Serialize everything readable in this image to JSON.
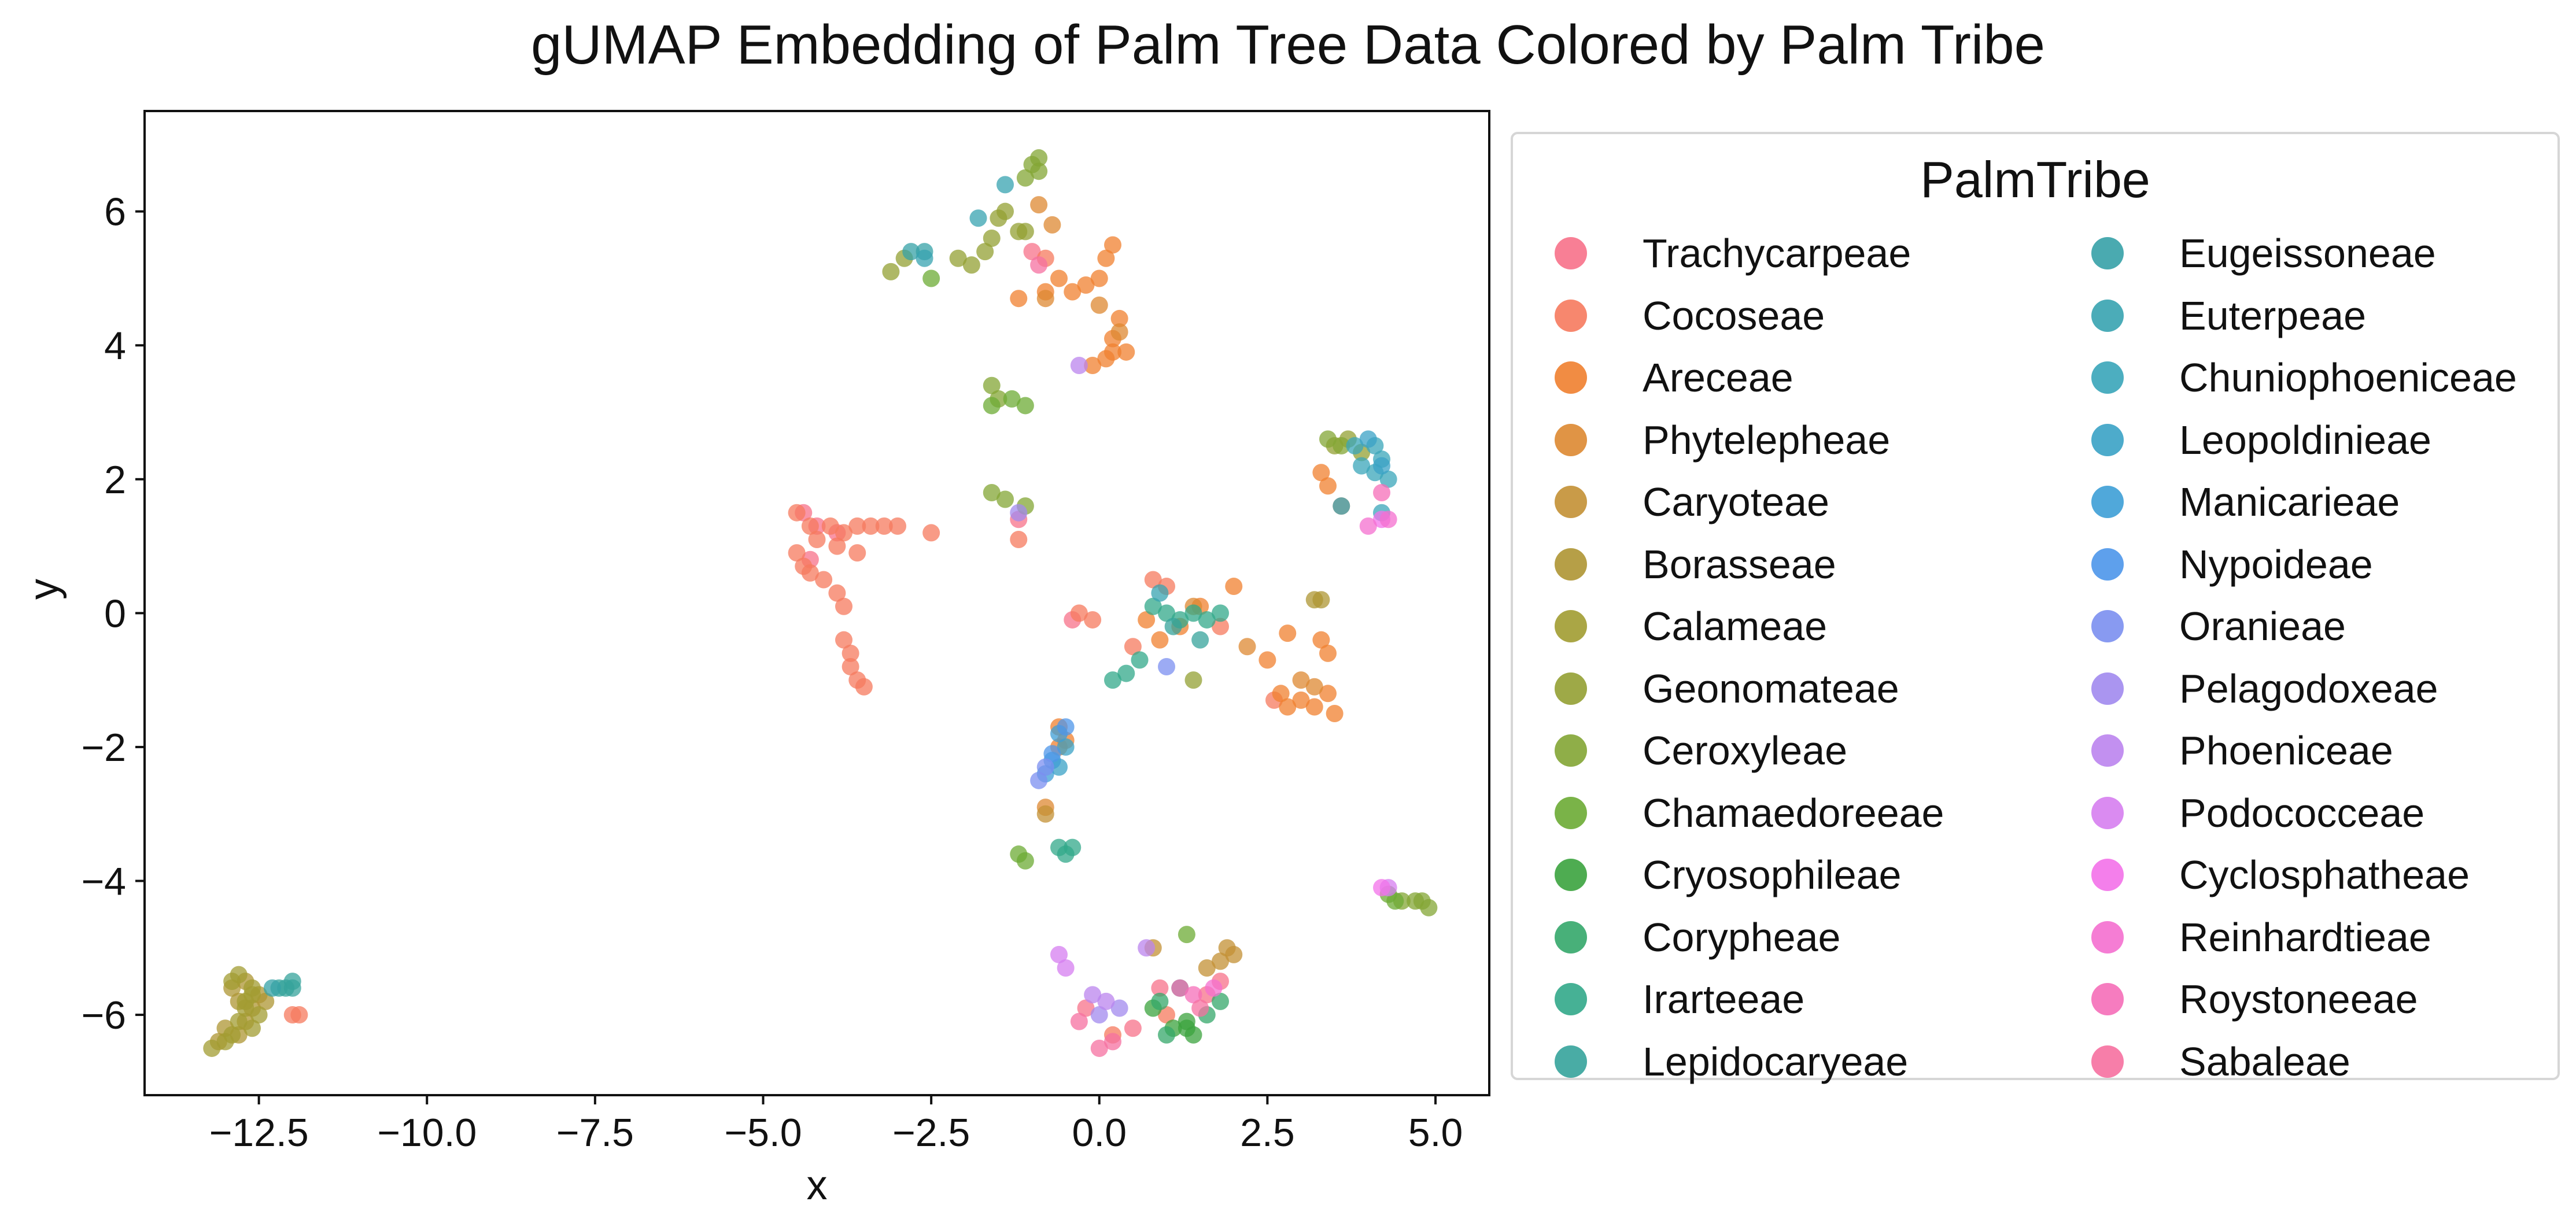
{
  "chart_data": {
    "type": "scatter",
    "title": "gUMAP Embedding of Palm Tree Data Colored by Palm Tribe",
    "xlabel": "x",
    "ylabel": "y",
    "xlim": [
      -14.2,
      5.8
    ],
    "ylim": [
      -7.2,
      7.5
    ],
    "xticks": [
      -12.5,
      -10.0,
      -7.5,
      -5.0,
      -2.5,
      0.0,
      2.5,
      5.0
    ],
    "xtick_labels": [
      "−12.5",
      "−10.0",
      "−7.5",
      "−5.0",
      "−2.5",
      "0.0",
      "2.5",
      "5.0"
    ],
    "yticks": [
      -6,
      -4,
      -2,
      0,
      2,
      4,
      6
    ],
    "ytick_labels": [
      "−6",
      "−4",
      "−2",
      "0",
      "2",
      "4",
      "6"
    ],
    "grid": false,
    "legend": {
      "title": "PalmTribe",
      "placement": "outside-right",
      "columns": 2
    },
    "series": [
      {
        "name": "Trachycarpeae",
        "color": "#f77189",
        "points": [
          [
            -4.4,
            1.5
          ],
          [
            -4.2,
            1.3
          ],
          [
            -3.9,
            1.2
          ],
          [
            -1.2,
            1.4
          ],
          [
            -0.4,
            -0.1
          ],
          [
            0.5,
            -6.2
          ],
          [
            1.6,
            -5.7
          ],
          [
            -0.2,
            -5.9
          ],
          [
            -1.0,
            5.4
          ],
          [
            -4.3,
            0.8
          ],
          [
            0.9,
            -5.6
          ],
          [
            1.8,
            -5.5
          ]
        ]
      },
      {
        "name": "Cocoseae",
        "color": "#f67a5e",
        "points": [
          [
            -4.5,
            1.5
          ],
          [
            -4.3,
            1.3
          ],
          [
            -4.2,
            1.1
          ],
          [
            -4.0,
            1.3
          ],
          [
            -3.8,
            1.2
          ],
          [
            -3.6,
            1.3
          ],
          [
            -3.4,
            1.3
          ],
          [
            -3.2,
            1.3
          ],
          [
            -3.0,
            1.3
          ],
          [
            -2.5,
            1.2
          ],
          [
            -4.5,
            0.9
          ],
          [
            -4.4,
            0.7
          ],
          [
            -4.3,
            0.6
          ],
          [
            -4.1,
            0.5
          ],
          [
            -3.9,
            0.3
          ],
          [
            -3.8,
            0.1
          ],
          [
            -3.8,
            -0.4
          ],
          [
            -3.7,
            -0.6
          ],
          [
            -3.7,
            -0.8
          ],
          [
            -3.6,
            -1.0
          ],
          [
            -3.5,
            -1.1
          ],
          [
            -3.9,
            1.0
          ],
          [
            -3.6,
            0.9
          ],
          [
            -12.0,
            -6.0
          ],
          [
            -11.9,
            -6.0
          ],
          [
            -1.2,
            1.1
          ],
          [
            -0.8,
            5.3
          ],
          [
            0.2,
            -6.3
          ],
          [
            1.0,
            -6.0
          ],
          [
            0.8,
            0.5
          ],
          [
            1.0,
            0.4
          ],
          [
            -0.3,
            0.0
          ],
          [
            -0.1,
            -0.1
          ],
          [
            1.8,
            -0.2
          ],
          [
            0.5,
            -0.5
          ],
          [
            2.6,
            -1.3
          ]
        ]
      },
      {
        "name": "Areceae",
        "color": "#f0802f",
        "points": [
          [
            -0.6,
            5.0
          ],
          [
            -0.4,
            4.8
          ],
          [
            -0.2,
            4.9
          ],
          [
            0.0,
            5.0
          ],
          [
            0.1,
            5.3
          ],
          [
            0.2,
            5.5
          ],
          [
            0.3,
            4.4
          ],
          [
            0.2,
            4.1
          ],
          [
            0.1,
            3.8
          ],
          [
            0.2,
            3.9
          ],
          [
            -0.1,
            3.7
          ],
          [
            0.4,
            3.9
          ],
          [
            -0.8,
            4.8
          ],
          [
            -1.2,
            4.7
          ],
          [
            2.5,
            -0.7
          ],
          [
            2.7,
            -1.2
          ],
          [
            2.8,
            -1.4
          ],
          [
            3.0,
            -1.3
          ],
          [
            3.2,
            -1.4
          ],
          [
            3.3,
            -0.4
          ],
          [
            3.4,
            -0.6
          ],
          [
            3.4,
            -1.2
          ],
          [
            3.5,
            -1.5
          ],
          [
            2.8,
            -0.3
          ],
          [
            2.0,
            0.4
          ],
          [
            1.5,
            0.1
          ],
          [
            1.2,
            -0.2
          ],
          [
            0.9,
            -0.4
          ],
          [
            0.7,
            -0.1
          ],
          [
            -0.6,
            -1.7
          ],
          [
            -0.5,
            -1.9
          ],
          [
            -0.6,
            -2.0
          ],
          [
            3.3,
            2.1
          ],
          [
            3.4,
            1.9
          ],
          [
            3.6,
            1.6
          ]
        ]
      },
      {
        "name": "Phytelepheae",
        "color": "#dd8831",
        "points": [
          [
            -0.7,
            5.8
          ],
          [
            -0.9,
            6.1
          ],
          [
            -0.8,
            4.7
          ],
          [
            0.0,
            4.6
          ],
          [
            0.3,
            4.2
          ],
          [
            3.0,
            -1.0
          ],
          [
            3.2,
            -1.1
          ],
          [
            1.4,
            0.1
          ],
          [
            2.2,
            -0.5
          ],
          [
            -0.8,
            -2.9
          ]
        ]
      },
      {
        "name": "Caryoteae",
        "color": "#c39034",
        "points": [
          [
            1.9,
            -5.0
          ],
          [
            2.0,
            -5.1
          ],
          [
            1.8,
            -5.2
          ],
          [
            -0.8,
            -3.0
          ],
          [
            0.8,
            -5.0
          ],
          [
            1.6,
            -5.3
          ]
        ]
      },
      {
        "name": "Borasseae",
        "color": "#ae9533",
        "points": [
          [
            -13.1,
            -6.4
          ],
          [
            -13.0,
            -6.2
          ],
          [
            -12.8,
            -6.3
          ],
          [
            -12.7,
            -6.1
          ],
          [
            -12.6,
            -5.9
          ],
          [
            -12.8,
            -5.8
          ],
          [
            -12.9,
            -5.6
          ],
          [
            -12.7,
            -5.5
          ],
          [
            -12.5,
            -5.7
          ],
          [
            -12.4,
            -5.8
          ],
          [
            3.2,
            0.2
          ],
          [
            3.3,
            0.2
          ]
        ]
      },
      {
        "name": "Calameae",
        "color": "#a19c31",
        "points": [
          [
            -13.2,
            -6.5
          ],
          [
            -13.0,
            -6.4
          ],
          [
            -12.9,
            -6.3
          ],
          [
            -12.8,
            -6.1
          ],
          [
            -12.7,
            -5.9
          ],
          [
            -12.6,
            -5.7
          ],
          [
            -12.8,
            -5.4
          ],
          [
            -12.9,
            -5.5
          ],
          [
            -12.6,
            -5.6
          ],
          [
            -12.7,
            -5.8
          ],
          [
            -12.5,
            -6.0
          ],
          [
            -12.6,
            -6.2
          ]
        ]
      },
      {
        "name": "Geonomateae",
        "color": "#93a033",
        "points": [
          [
            -1.7,
            5.4
          ],
          [
            -1.9,
            5.2
          ],
          [
            -2.1,
            5.3
          ],
          [
            -1.6,
            5.6
          ],
          [
            -1.5,
            5.9
          ],
          [
            -1.4,
            6.0
          ],
          [
            -1.2,
            5.7
          ],
          [
            -3.1,
            5.1
          ],
          [
            -2.9,
            5.3
          ],
          [
            -1.1,
            5.7
          ],
          [
            3.5,
            2.5
          ],
          [
            3.7,
            2.6
          ],
          [
            3.9,
            2.4
          ],
          [
            1.4,
            -1.0
          ]
        ]
      },
      {
        "name": "Ceroxyleae",
        "color": "#83a534",
        "points": [
          [
            -1.0,
            6.7
          ],
          [
            -0.9,
            6.8
          ],
          [
            -1.1,
            6.5
          ],
          [
            -0.9,
            6.6
          ],
          [
            -1.6,
            3.4
          ],
          [
            -1.5,
            3.2
          ],
          [
            -1.6,
            1.8
          ],
          [
            -1.4,
            1.7
          ],
          [
            -1.1,
            1.6
          ],
          [
            4.8,
            -4.3
          ],
          [
            4.9,
            -4.4
          ],
          [
            4.7,
            -4.3
          ],
          [
            4.5,
            -4.3
          ],
          [
            3.4,
            2.6
          ],
          [
            3.6,
            2.5
          ]
        ]
      },
      {
        "name": "Chamaedoreeae",
        "color": "#6cab34",
        "points": [
          [
            -1.6,
            3.1
          ],
          [
            -1.3,
            3.2
          ],
          [
            -1.1,
            3.1
          ],
          [
            -1.2,
            -3.6
          ],
          [
            -1.1,
            -3.7
          ],
          [
            4.3,
            -4.2
          ],
          [
            4.4,
            -4.3
          ],
          [
            1.3,
            -4.8
          ],
          [
            -2.5,
            5.0
          ]
        ]
      },
      {
        "name": "Cryosophileae",
        "color": "#3ba33e",
        "points": [
          [
            1.3,
            -6.2
          ],
          [
            1.4,
            -6.3
          ],
          [
            1.1,
            -6.2
          ],
          [
            0.8,
            -5.9
          ],
          [
            1.3,
            -6.1
          ]
        ]
      },
      {
        "name": "Corypheae",
        "color": "#34a76a",
        "points": [
          [
            1.6,
            -6.0
          ],
          [
            1.8,
            -5.8
          ],
          [
            1.0,
            -6.3
          ],
          [
            0.9,
            -5.8
          ],
          [
            1.2,
            -5.6
          ]
        ]
      },
      {
        "name": "Irarteeae",
        "color": "#32a88a",
        "points": [
          [
            1.0,
            0.0
          ],
          [
            1.2,
            -0.1
          ],
          [
            1.4,
            0.0
          ],
          [
            1.6,
            -0.1
          ],
          [
            1.8,
            0.0
          ],
          [
            0.8,
            0.1
          ],
          [
            0.6,
            -0.7
          ],
          [
            0.4,
            -0.9
          ],
          [
            0.2,
            -1.0
          ],
          [
            -0.4,
            -3.5
          ],
          [
            -0.5,
            -3.6
          ],
          [
            -0.6,
            -3.5
          ]
        ]
      },
      {
        "name": "Lepidocaryeae",
        "color": "#35a39b",
        "points": [
          [
            -12.1,
            -5.6
          ],
          [
            -12.0,
            -5.5
          ],
          [
            -12.2,
            -5.6
          ],
          [
            -12.0,
            -5.6
          ],
          [
            1.5,
            -0.4
          ],
          [
            1.1,
            -0.2
          ]
        ]
      },
      {
        "name": "Eugeissoneae",
        "color": "#36a1a7",
        "points": [
          [
            -2.8,
            5.4
          ],
          [
            -2.6,
            5.4
          ],
          [
            -12.3,
            -5.6
          ]
        ]
      },
      {
        "name": "Euterpeae",
        "color": "#37a3b0",
        "points": [
          [
            -1.4,
            6.4
          ],
          [
            -2.6,
            5.3
          ],
          [
            -1.8,
            5.9
          ],
          [
            0.9,
            0.3
          ]
        ]
      },
      {
        "name": "Chuniophoeniceae",
        "color": "#39a5b9",
        "points": [
          [
            3.9,
            2.2
          ],
          [
            4.1,
            2.1
          ],
          [
            4.2,
            2.3
          ],
          [
            3.8,
            2.5
          ],
          [
            4.1,
            2.5
          ],
          [
            4.3,
            2.0
          ],
          [
            3.6,
            1.6
          ],
          [
            4.2,
            1.5
          ]
        ]
      },
      {
        "name": "Leopoldinieae",
        "color": "#3aa2c5",
        "points": [
          [
            4.0,
            2.6
          ],
          [
            4.2,
            2.2
          ],
          [
            -0.6,
            -2.3
          ],
          [
            -0.5,
            -2.0
          ]
        ]
      },
      {
        "name": "Manicarieae",
        "color": "#3d9ed6",
        "points": [
          [
            -0.6,
            -1.8
          ],
          [
            -0.7,
            -2.2
          ],
          [
            -0.8,
            -2.4
          ]
        ]
      },
      {
        "name": "Nypoideae",
        "color": "#4d96ea",
        "points": [
          [
            -0.5,
            -1.7
          ],
          [
            -0.7,
            -2.1
          ]
        ]
      },
      {
        "name": "Oranieae",
        "color": "#7b8ff0",
        "points": [
          [
            -0.8,
            -2.3
          ],
          [
            -0.9,
            -2.5
          ],
          [
            1.0,
            -0.8
          ]
        ]
      },
      {
        "name": "Pelagodoxeae",
        "color": "#a189ee",
        "points": [
          [
            -1.2,
            1.5
          ],
          [
            0.3,
            -5.9
          ],
          [
            0.0,
            -6.0
          ]
        ]
      },
      {
        "name": "Phoeniceae",
        "color": "#bb84ee",
        "points": [
          [
            0.1,
            -5.8
          ],
          [
            -0.1,
            -5.7
          ],
          [
            0.7,
            -5.0
          ],
          [
            -0.3,
            3.7
          ]
        ]
      },
      {
        "name": "Podococceae",
        "color": "#d67ef0",
        "points": [
          [
            -0.6,
            -5.1
          ],
          [
            -0.5,
            -5.3
          ],
          [
            4.3,
            -4.1
          ]
        ]
      },
      {
        "name": "Cyclosphatheae",
        "color": "#f371e9",
        "points": [
          [
            4.2,
            -4.1
          ],
          [
            4.2,
            1.4
          ]
        ]
      },
      {
        "name": "Reinhardtieae",
        "color": "#f46fcf",
        "points": [
          [
            4.3,
            1.4
          ],
          [
            4.0,
            1.3
          ],
          [
            1.7,
            -5.6
          ]
        ]
      },
      {
        "name": "Roystoneeae",
        "color": "#f56eb8",
        "points": [
          [
            4.2,
            1.8
          ],
          [
            1.4,
            -5.7
          ],
          [
            1.2,
            -5.6
          ]
        ]
      },
      {
        "name": "Sabaleae",
        "color": "#f670a0",
        "points": [
          [
            0.0,
            -6.5
          ],
          [
            0.2,
            -6.4
          ],
          [
            1.5,
            -5.9
          ],
          [
            -0.3,
            -6.1
          ],
          [
            -0.9,
            5.2
          ]
        ]
      }
    ]
  }
}
